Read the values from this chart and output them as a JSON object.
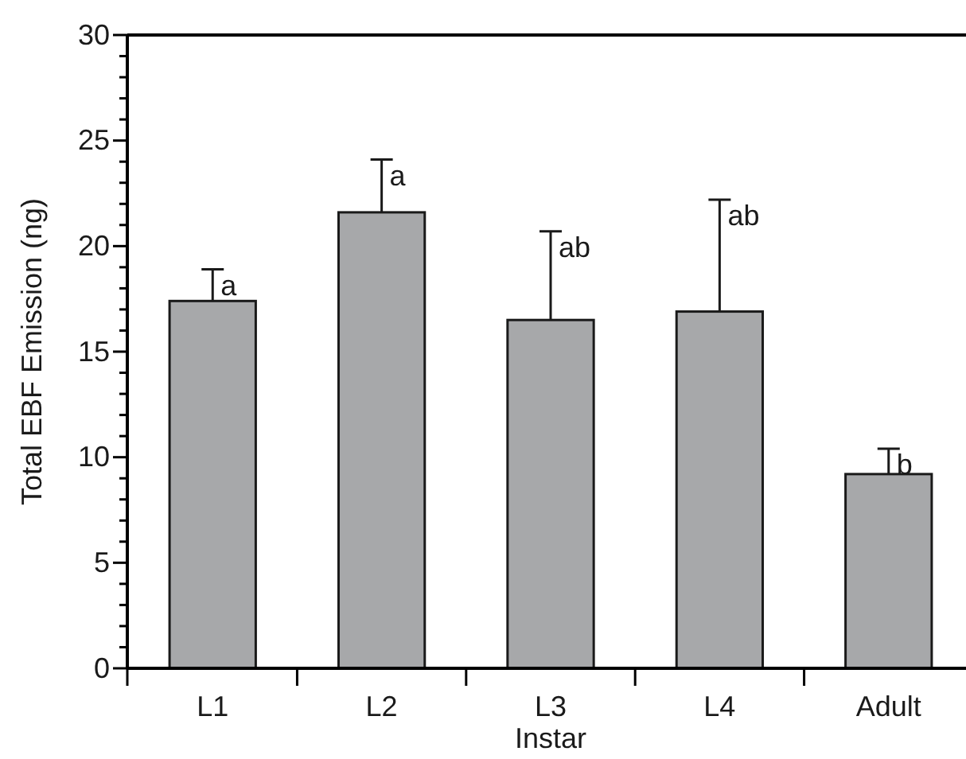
{
  "chart_data": {
    "type": "bar",
    "xlabel": "Instar",
    "ylabel": "Total EBF Emission (ng)",
    "categories": [
      "L1",
      "L2",
      "L3",
      "L4",
      "Adult"
    ],
    "values": [
      17.4,
      21.6,
      16.5,
      16.9,
      9.2
    ],
    "errors": [
      1.5,
      2.5,
      4.2,
      5.3,
      1.2
    ],
    "color": "#a7a8aa",
    "ylim": [
      0,
      30
    ],
    "yticks": [
      0,
      {
        "value": 1,
        "label": null
      },
      {
        "value": 2,
        "label": null
      },
      {
        "value": 3,
        "label": null
      },
      {
        "value": 4,
        "label": null
      },
      5,
      {
        "value": 6,
        "label": null
      },
      {
        "value": 7,
        "label": null
      },
      {
        "value": 8,
        "label": null
      },
      {
        "value": 9,
        "label": null
      },
      10,
      {
        "value": 11,
        "label": null
      },
      {
        "value": 12,
        "label": null
      },
      {
        "value": 13,
        "label": null
      },
      {
        "value": 14,
        "label": null
      },
      15,
      {
        "value": 16,
        "label": null
      },
      {
        "value": 17,
        "label": null
      },
      {
        "value": 18,
        "label": null
      },
      {
        "value": 19,
        "label": null
      },
      20,
      {
        "value": 21,
        "label": null
      },
      {
        "value": 22,
        "label": null
      },
      {
        "value": 23,
        "label": null
      },
      {
        "value": 24,
        "label": null
      },
      25,
      {
        "value": 26,
        "label": null
      },
      {
        "value": 27,
        "label": null
      },
      {
        "value": 28,
        "label": null
      },
      {
        "value": 29,
        "label": null
      },
      30
    ],
    "annotations": [
      "a",
      "a",
      "ab",
      "ab",
      "b"
    ]
  }
}
